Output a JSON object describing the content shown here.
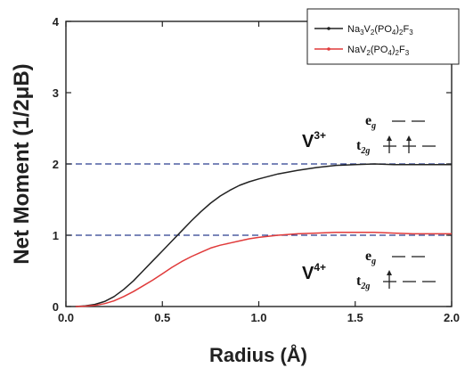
{
  "chart_data": {
    "type": "line",
    "title": "",
    "xlabel": "Radius (Å)",
    "ylabel": "Net Moment (1/2μB)",
    "xlim": [
      0.0,
      2.0
    ],
    "ylim": [
      0,
      4
    ],
    "xticks": [
      "0.0",
      "0.5",
      "1.0",
      "1.5",
      "2.0"
    ],
    "yticks": [
      "0",
      "1",
      "2",
      "3",
      "4"
    ],
    "grid": false,
    "legend_position": "top-right",
    "series": [
      {
        "name": "Na3V2(PO4)2F3",
        "legend": {
          "parts": [
            {
              "t": "Na"
            },
            {
              "t": "3",
              "sub": true
            },
            {
              "t": "V"
            },
            {
              "t": "2",
              "sub": true
            },
            {
              "t": "(PO"
            },
            {
              "t": "4",
              "sub": true
            },
            {
              "t": ")"
            },
            {
              "t": "2",
              "sub": true
            },
            {
              "t": "F"
            },
            {
              "t": "3",
              "sub": true
            }
          ]
        },
        "color": "#222222",
        "x": [
          0.05,
          0.1,
          0.15,
          0.2,
          0.25,
          0.3,
          0.35,
          0.4,
          0.45,
          0.5,
          0.55,
          0.6,
          0.65,
          0.7,
          0.75,
          0.8,
          0.85,
          0.9,
          0.95,
          1.0,
          1.1,
          1.2,
          1.3,
          1.4,
          1.5,
          1.6,
          1.7,
          1.8,
          1.9,
          2.0
        ],
        "y": [
          0.0,
          0.01,
          0.03,
          0.07,
          0.14,
          0.24,
          0.36,
          0.5,
          0.64,
          0.78,
          0.92,
          1.06,
          1.2,
          1.33,
          1.45,
          1.55,
          1.63,
          1.7,
          1.75,
          1.79,
          1.86,
          1.91,
          1.95,
          1.98,
          1.99,
          2.0,
          1.99,
          1.99,
          1.99,
          1.99
        ]
      },
      {
        "name": "NaV2(PO4)2F3",
        "legend": {
          "parts": [
            {
              "t": "NaV"
            },
            {
              "t": "2",
              "sub": true
            },
            {
              "t": "(PO"
            },
            {
              "t": "4",
              "sub": true
            },
            {
              "t": ")"
            },
            {
              "t": "2",
              "sub": true
            },
            {
              "t": "F"
            },
            {
              "t": "3",
              "sub": true
            }
          ]
        },
        "color": "#e03a3a",
        "x": [
          0.05,
          0.1,
          0.15,
          0.2,
          0.25,
          0.3,
          0.35,
          0.4,
          0.45,
          0.5,
          0.55,
          0.6,
          0.65,
          0.7,
          0.75,
          0.8,
          0.85,
          0.9,
          0.95,
          1.0,
          1.1,
          1.2,
          1.3,
          1.4,
          1.5,
          1.6,
          1.7,
          1.8,
          1.9,
          2.0
        ],
        "y": [
          0.0,
          0.005,
          0.015,
          0.04,
          0.08,
          0.14,
          0.21,
          0.29,
          0.37,
          0.46,
          0.55,
          0.63,
          0.7,
          0.76,
          0.82,
          0.86,
          0.89,
          0.92,
          0.95,
          0.97,
          1.0,
          1.02,
          1.03,
          1.04,
          1.04,
          1.04,
          1.03,
          1.02,
          1.02,
          1.02
        ]
      }
    ],
    "reference_lines": [
      {
        "y": 2,
        "style": "dashed",
        "color": "#2a3f8f"
      },
      {
        "y": 1,
        "style": "dashed",
        "color": "#2a3f8f"
      }
    ],
    "annotations": [
      {
        "id": "v3",
        "ion": {
          "base": "V",
          "sup": "3+"
        },
        "eg": {
          "base": "e",
          "sub": "g"
        },
        "t2g": {
          "base": "t",
          "sub": "2g"
        }
      },
      {
        "id": "v4",
        "ion": {
          "base": "V",
          "sup": "4+"
        },
        "eg": {
          "base": "e",
          "sub": "g"
        },
        "t2g": {
          "base": "t",
          "sub": "2g"
        }
      }
    ]
  }
}
